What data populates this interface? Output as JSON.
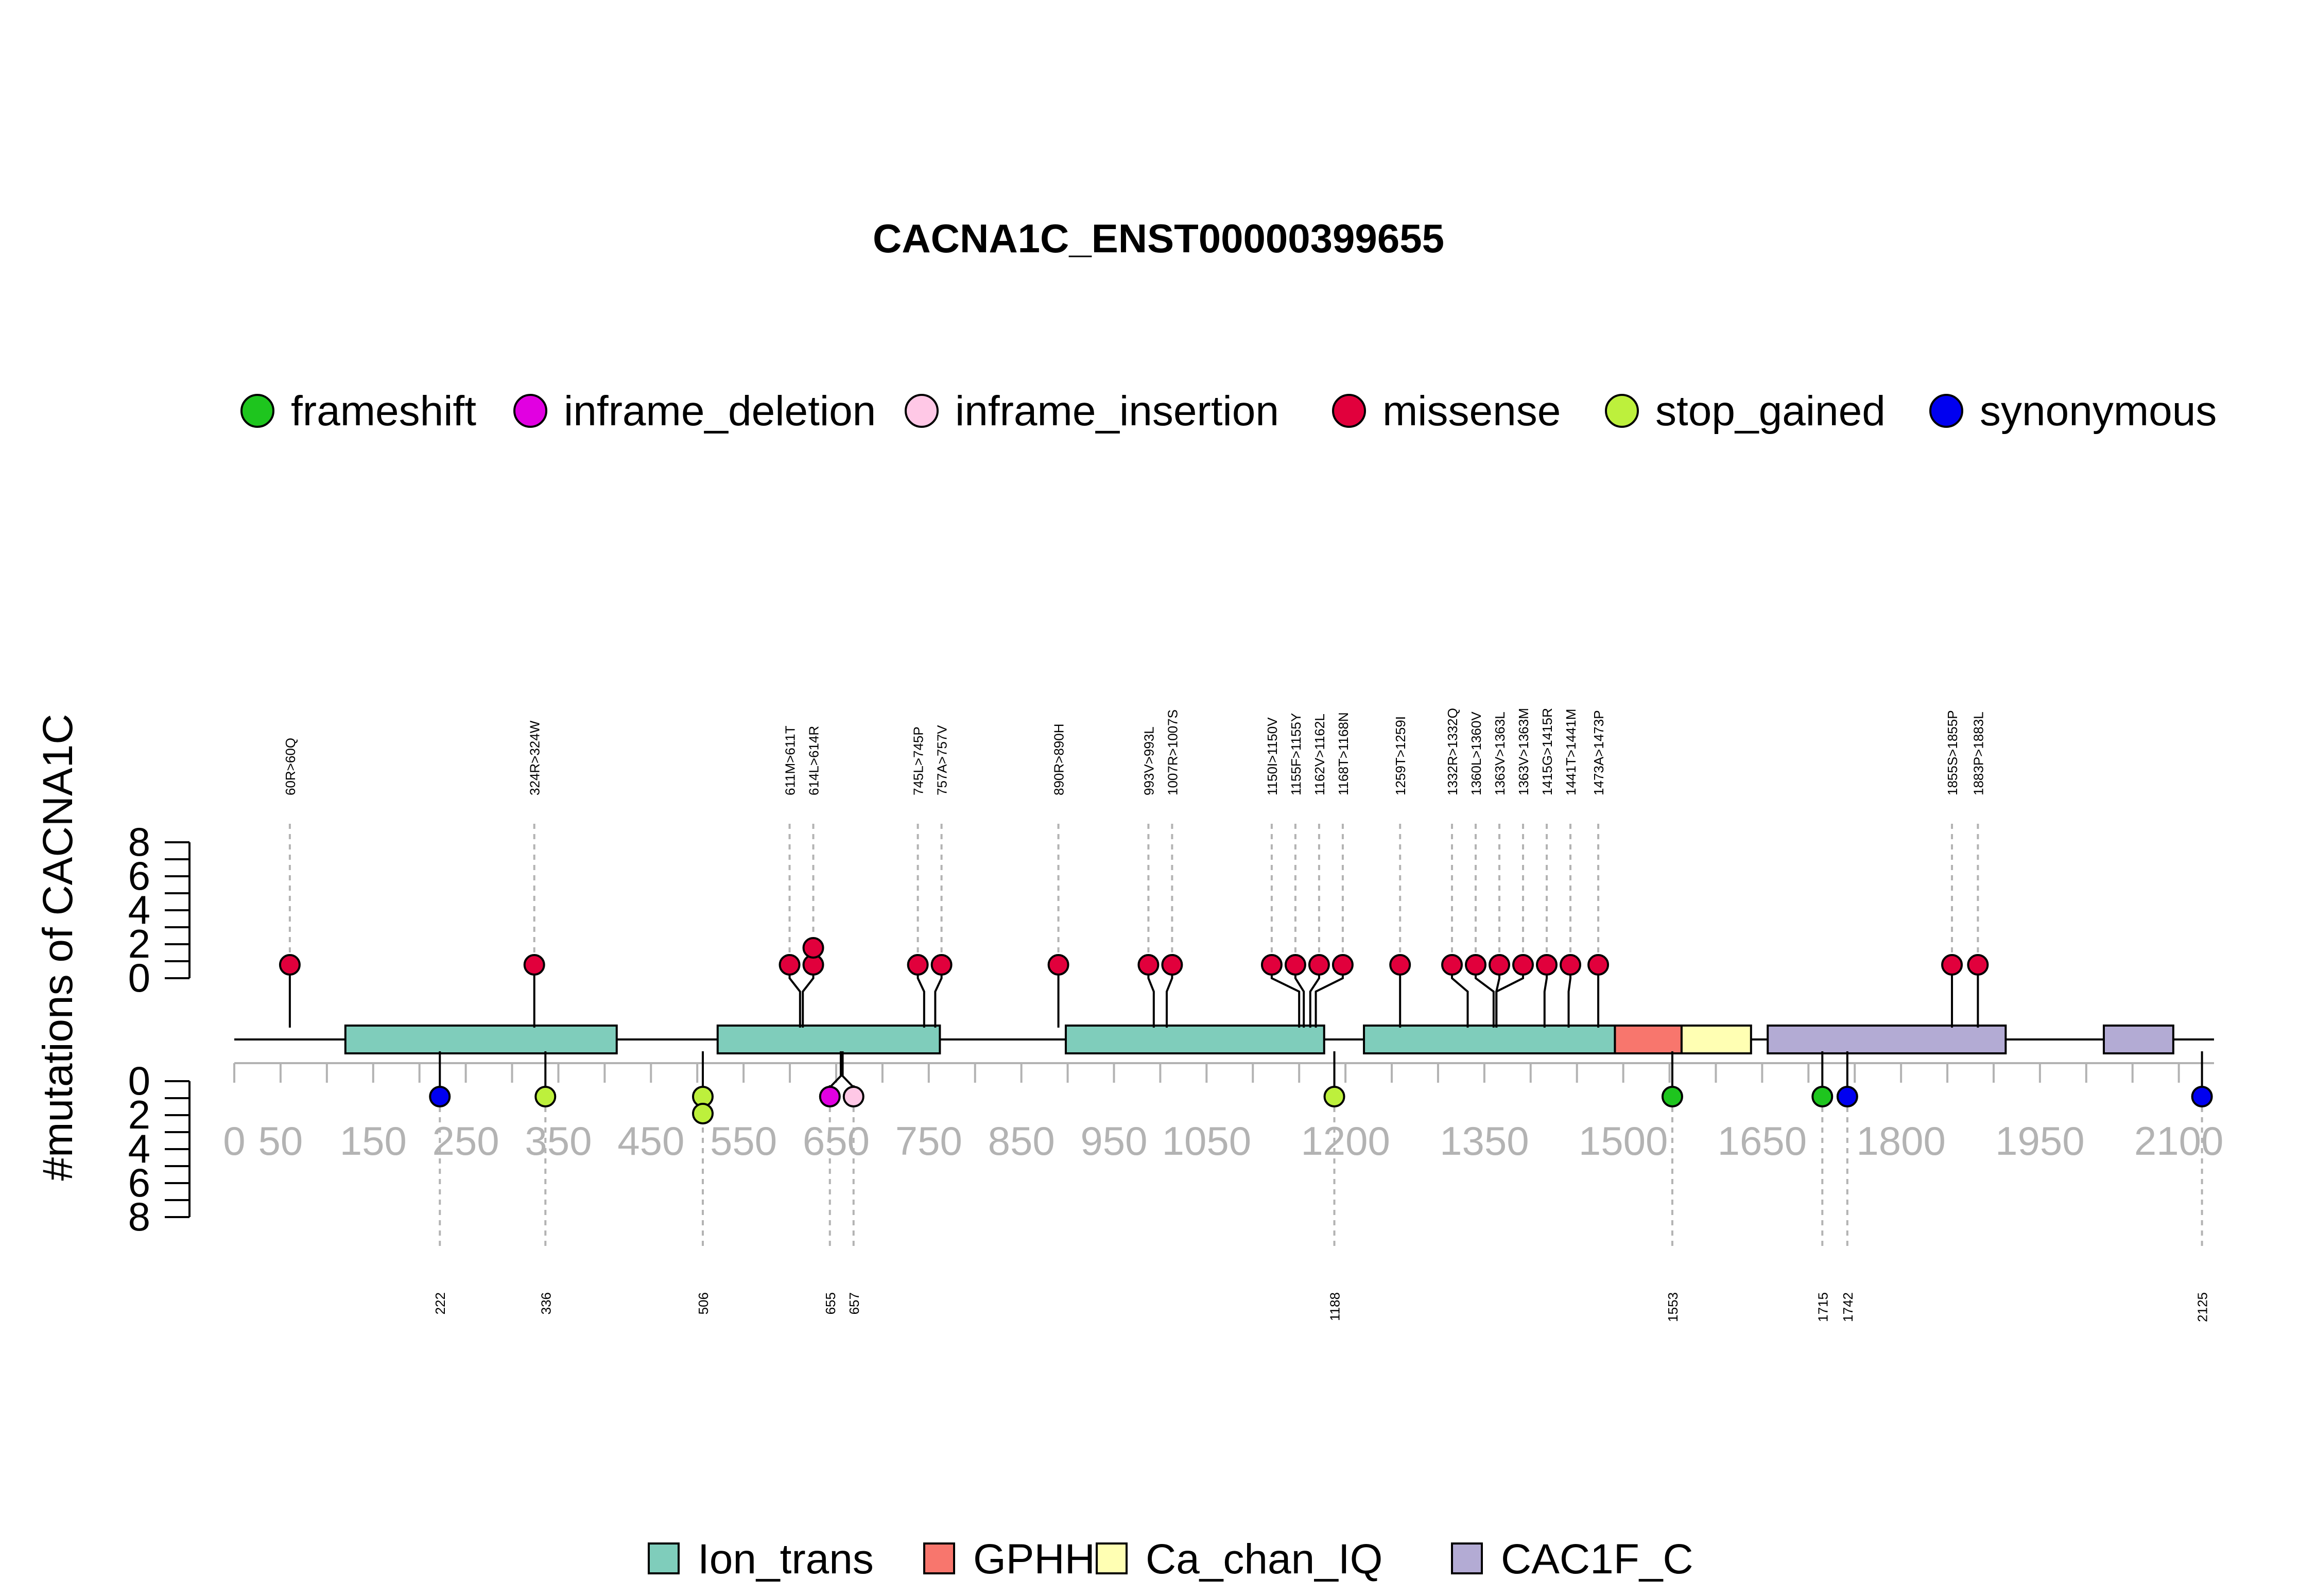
{
  "chart_data": {
    "type": "lollipop",
    "title": "CACNA1C_ENST00000399655",
    "ylabel": "#mutations of CACNA1C",
    "protein_length": 2138,
    "x_ticks": [
      0,
      50,
      150,
      250,
      350,
      450,
      550,
      650,
      750,
      850,
      950,
      1050,
      1200,
      1350,
      1500,
      1650,
      1800,
      1950,
      2100
    ],
    "y_ticks": [
      0,
      2,
      4,
      6,
      8
    ],
    "ylim": [
      0,
      8
    ],
    "mutation_types": [
      {
        "name": "frameshift",
        "color": "#1ec51e"
      },
      {
        "name": "inframe_deletion",
        "color": "#e100e1"
      },
      {
        "name": "inframe_insertion",
        "color": "#ffc8e6"
      },
      {
        "name": "missense",
        "color": "#e1003c"
      },
      {
        "name": "stop_gained",
        "color": "#bdf03c"
      },
      {
        "name": "synonymous",
        "color": "#0000f0"
      }
    ],
    "domains": [
      {
        "name": "Ion_trans",
        "start": 120,
        "end": 413,
        "color": "#7fcdbb"
      },
      {
        "name": "Ion_trans",
        "start": 522,
        "end": 762,
        "color": "#7fcdbb"
      },
      {
        "name": "Ion_trans",
        "start": 898,
        "end": 1177,
        "color": "#7fcdbb"
      },
      {
        "name": "Ion_trans",
        "start": 1220,
        "end": 1491,
        "color": "#7fcdbb"
      },
      {
        "name": "GPHH",
        "start": 1491,
        "end": 1563,
        "color": "#f8766d"
      },
      {
        "name": "Ca_chan_IQ",
        "start": 1563,
        "end": 1638,
        "color": "#ffffb3"
      },
      {
        "name": "CAC1F_C",
        "start": 1656,
        "end": 1913,
        "color": "#b3abd4"
      },
      {
        "name": "CAC1F_C",
        "start": 2019,
        "end": 2094,
        "color": "#b3abd4"
      }
    ],
    "domain_legend": [
      "Ion_trans",
      "GPHH",
      "Ca_chan_IQ",
      "CAC1F_C"
    ],
    "top_mutations": [
      {
        "pos": 60,
        "label": "60R>60Q",
        "type": "missense",
        "count": 1
      },
      {
        "pos": 324,
        "label": "324R>324W",
        "type": "missense",
        "count": 1
      },
      {
        "pos": 611,
        "label": "611M>611T",
        "type": "missense",
        "count": 1
      },
      {
        "pos": 614,
        "label": "614L>614R",
        "type": "missense",
        "count": 2
      },
      {
        "pos": 745,
        "label": "745L>745P",
        "type": "missense",
        "count": 1
      },
      {
        "pos": 757,
        "label": "757A>757V",
        "type": "missense",
        "count": 1
      },
      {
        "pos": 890,
        "label": "890R>890H",
        "type": "missense",
        "count": 1
      },
      {
        "pos": 993,
        "label": "993V>993L",
        "type": "missense",
        "count": 1
      },
      {
        "pos": 1007,
        "label": "1007R>1007S",
        "type": "missense",
        "count": 1
      },
      {
        "pos": 1150,
        "label": "1150I>1150V",
        "type": "missense",
        "count": 1
      },
      {
        "pos": 1155,
        "label": "1155F>1155Y",
        "type": "missense",
        "count": 1
      },
      {
        "pos": 1162,
        "label": "1162V>1162L",
        "type": "missense",
        "count": 1
      },
      {
        "pos": 1168,
        "label": "1168T>1168N",
        "type": "missense",
        "count": 1
      },
      {
        "pos": 1259,
        "label": "1259T>1259I",
        "type": "missense",
        "count": 1
      },
      {
        "pos": 1332,
        "label": "1332R>1332Q",
        "type": "missense",
        "count": 1
      },
      {
        "pos": 1360,
        "label": "1360L>1360V",
        "type": "missense",
        "count": 1
      },
      {
        "pos": 1363,
        "label": "1363V>1363L",
        "type": "missense",
        "count": 1
      },
      {
        "pos": 1363,
        "label": "1363V>1363M",
        "type": "missense",
        "count": 1
      },
      {
        "pos": 1415,
        "label": "1415G>1415R",
        "type": "missense",
        "count": 1
      },
      {
        "pos": 1441,
        "label": "1441T>1441M",
        "type": "missense",
        "count": 1
      },
      {
        "pos": 1473,
        "label": "1473A>1473P",
        "type": "missense",
        "count": 1
      },
      {
        "pos": 1855,
        "label": "1855S>1855P",
        "type": "missense",
        "count": 1
      },
      {
        "pos": 1883,
        "label": "1883P>1883L",
        "type": "missense",
        "count": 1
      }
    ],
    "bottom_mutations": [
      {
        "pos": 222,
        "label": "222",
        "type": "synonymous",
        "count": 1
      },
      {
        "pos": 336,
        "label": "336",
        "type": "stop_gained",
        "count": 1
      },
      {
        "pos": 506,
        "label": "506",
        "type": "stop_gained",
        "count": 2
      },
      {
        "pos": 655,
        "label": "655",
        "type": "inframe_deletion",
        "count": 1
      },
      {
        "pos": 657,
        "label": "657",
        "type": "inframe_insertion",
        "count": 1
      },
      {
        "pos": 1188,
        "label": "1188",
        "type": "stop_gained",
        "count": 1
      },
      {
        "pos": 1553,
        "label": "1553",
        "type": "frameshift",
        "count": 1
      },
      {
        "pos": 1715,
        "label": "1715",
        "type": "frameshift",
        "count": 1
      },
      {
        "pos": 1742,
        "label": "1742",
        "type": "synonymous",
        "count": 1
      },
      {
        "pos": 2125,
        "label": "2125",
        "type": "synonymous",
        "count": 1
      }
    ]
  }
}
